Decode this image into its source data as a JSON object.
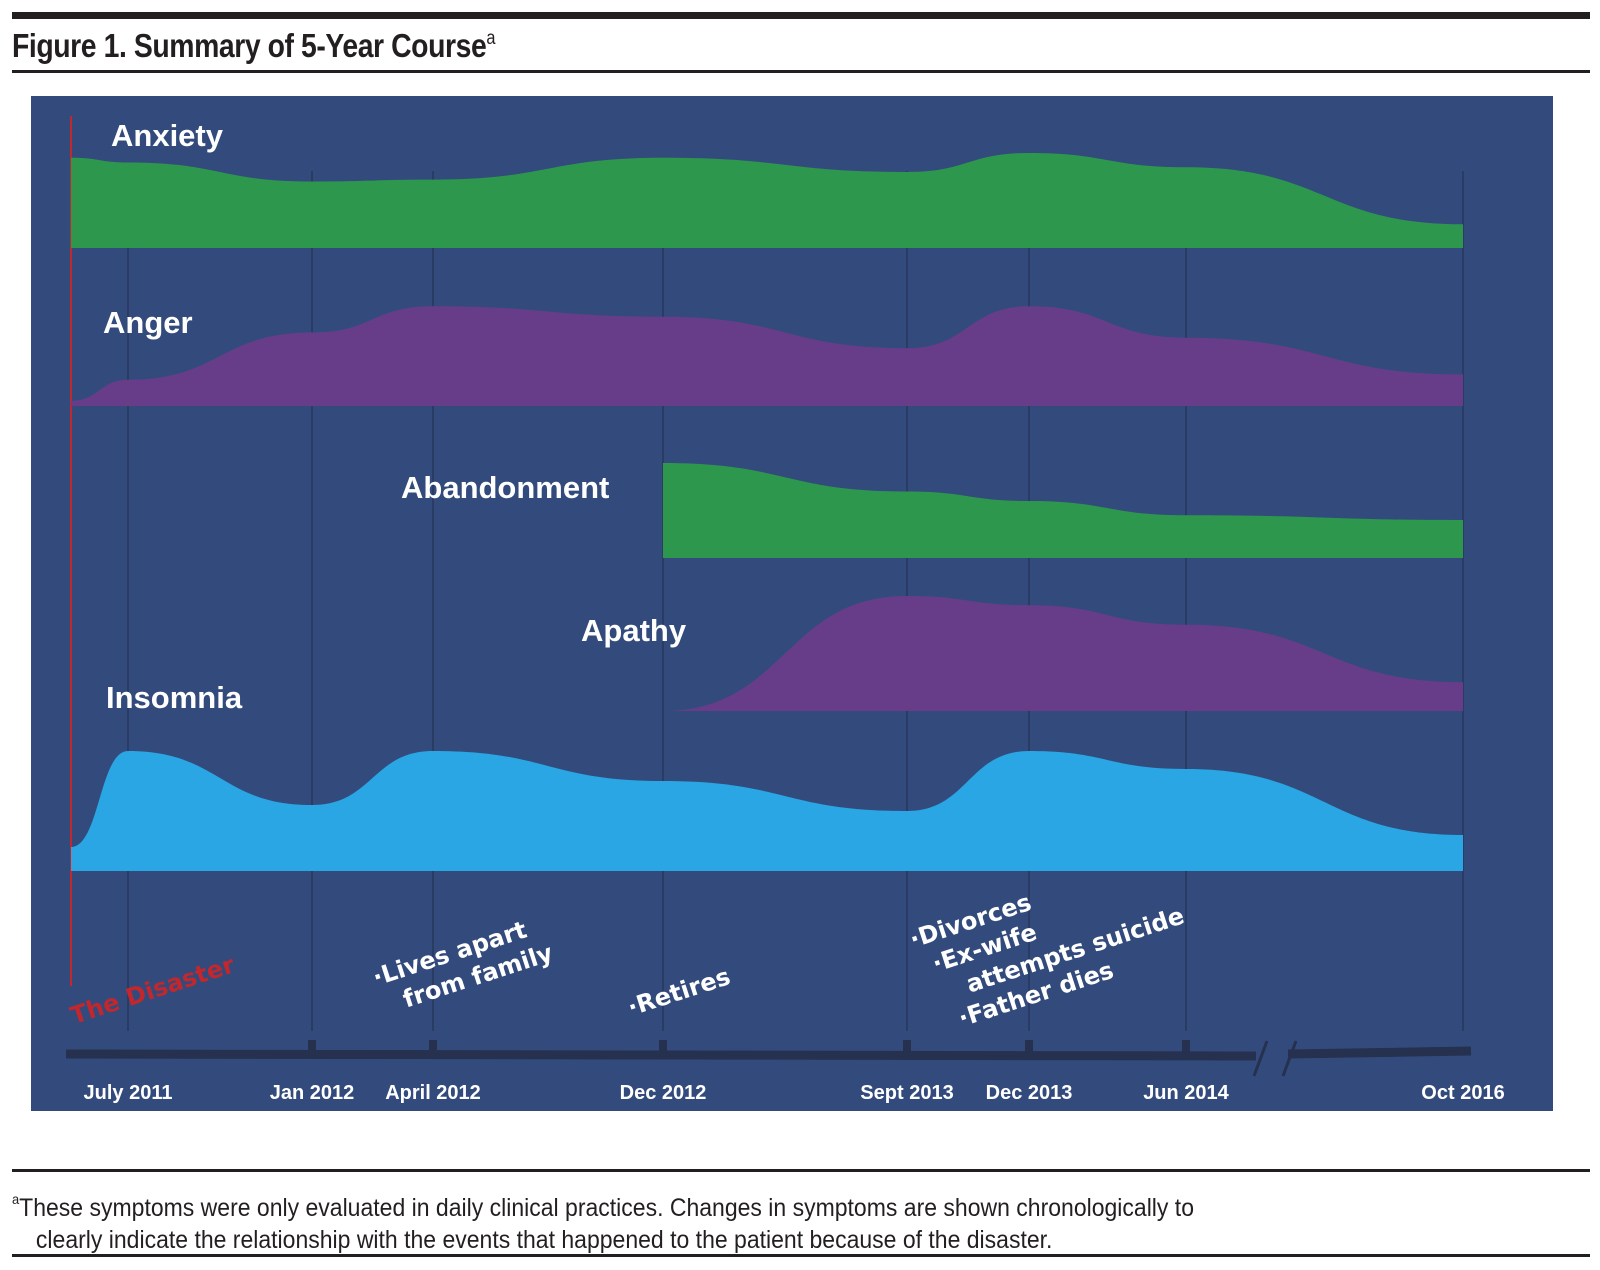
{
  "figure": {
    "title": "Figure 1. Summary of 5-Year Course",
    "title_superscript": "a"
  },
  "footnote": {
    "marker": "a",
    "line1": "These symptoms were only evaluated in daily clinical practices. Changes in symptoms are shown chronologically to",
    "line2": "clearly indicate the relationship with the events that happened to the patient because of the disaster."
  },
  "chart_data": {
    "type": "area",
    "title": "Summary of 5-Year Course",
    "xlabel": "",
    "ylabel": "",
    "grid": true,
    "axis_break": "between Jun 2014 and Oct 2016",
    "background_color": "#334b7c",
    "x_ticks": [
      "July 2011",
      "Jan 2012",
      "April 2012",
      "Dec 2012",
      "Sept 2013",
      "Dec 2013",
      "Jun 2014",
      "Oct 2016"
    ],
    "marker_line": {
      "label": "The Disaster",
      "at": "Mar 2011",
      "color": "#c1272d"
    },
    "series": [
      {
        "name": "Anxiety",
        "color": "#2e974e",
        "x": [
          "Mar 2011",
          "July 2011",
          "Jan 2012",
          "April 2012",
          "Dec 2012",
          "Sept 2013",
          "Dec 2013",
          "Jun 2014",
          "Oct 2016"
        ],
        "values": [
          0.95,
          0.9,
          0.7,
          0.72,
          0.95,
          0.8,
          1.0,
          0.85,
          0.25
        ]
      },
      {
        "name": "Anger",
        "color": "#673d8a",
        "x": [
          "Mar 2011",
          "July 2011",
          "Jan 2012",
          "April 2012",
          "Dec 2012",
          "Sept 2013",
          "Dec 2013",
          "Jun 2014",
          "Oct 2016"
        ],
        "values": [
          0.05,
          0.25,
          0.7,
          0.95,
          0.85,
          0.55,
          0.95,
          0.65,
          0.3
        ]
      },
      {
        "name": "Abandonment",
        "color": "#2e974e",
        "x": [
          "Dec 2012",
          "Sept 2013",
          "Dec 2013",
          "Jun 2014",
          "Oct 2016"
        ],
        "values": [
          1.0,
          0.7,
          0.6,
          0.45,
          0.4
        ]
      },
      {
        "name": "Apathy",
        "color": "#673d8a",
        "x": [
          "Dec 2012",
          "Sept 2013",
          "Dec 2013",
          "Jun 2014",
          "Oct 2016"
        ],
        "values": [
          0.0,
          1.0,
          0.92,
          0.75,
          0.25
        ]
      },
      {
        "name": "Insomnia",
        "color": "#29a6e3",
        "x": [
          "Mar 2011",
          "July 2011",
          "Jan 2012",
          "April 2012",
          "Dec 2012",
          "Sept 2013",
          "Dec 2013",
          "Jun 2014",
          "Oct 2016"
        ],
        "values": [
          0.2,
          1.0,
          0.55,
          1.0,
          0.75,
          0.5,
          1.0,
          0.85,
          0.3
        ]
      }
    ],
    "events": [
      {
        "at": "July 2011",
        "text": [
          "The Disaster"
        ],
        "color": "#c1272d"
      },
      {
        "at": "April 2012",
        "text": [
          "·Lives apart",
          "from family"
        ],
        "color": "#ffffff"
      },
      {
        "at": "Dec 2012",
        "text": [
          "·Retires"
        ],
        "color": "#ffffff"
      },
      {
        "at": "Sept 2013",
        "text": [
          "·Divorces",
          "·Ex-wife",
          "attempts suicide",
          "·Father dies"
        ],
        "color": "#ffffff"
      }
    ]
  }
}
